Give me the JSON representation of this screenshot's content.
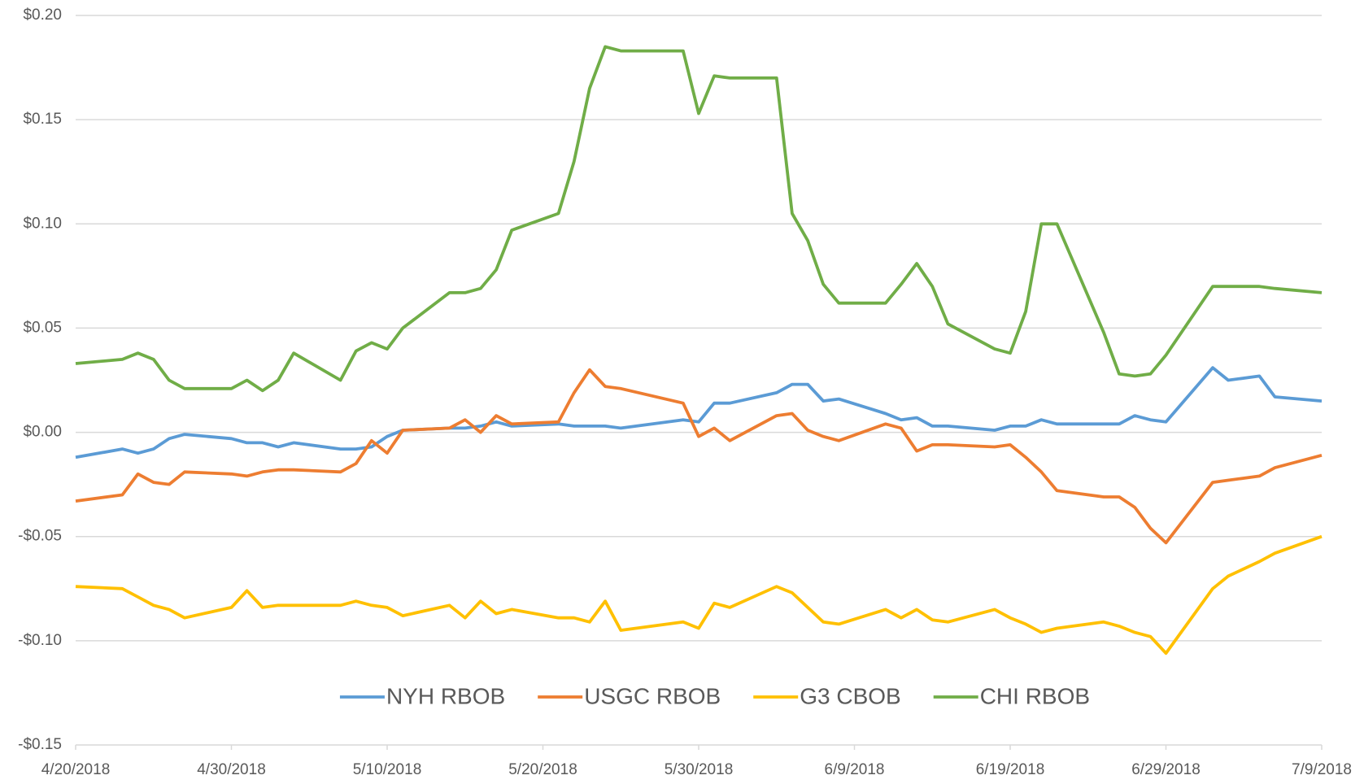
{
  "chart_data": {
    "type": "line",
    "x": [
      "4/20/2018",
      "4/23/2018",
      "4/24/2018",
      "4/25/2018",
      "4/26/2018",
      "4/27/2018",
      "4/30/2018",
      "5/1/2018",
      "5/2/2018",
      "5/3/2018",
      "5/4/2018",
      "5/7/2018",
      "5/8/2018",
      "5/9/2018",
      "5/10/2018",
      "5/11/2018",
      "5/14/2018",
      "5/15/2018",
      "5/16/2018",
      "5/17/2018",
      "5/18/2018",
      "5/21/2018",
      "5/22/2018",
      "5/23/2018",
      "5/24/2018",
      "5/25/2018",
      "5/29/2018",
      "5/30/2018",
      "5/31/2018",
      "6/1/2018",
      "6/4/2018",
      "6/5/2018",
      "6/6/2018",
      "6/7/2018",
      "6/8/2018",
      "6/11/2018",
      "6/12/2018",
      "6/13/2018",
      "6/14/2018",
      "6/15/2018",
      "6/18/2018",
      "6/19/2018",
      "6/20/2018",
      "6/21/2018",
      "6/22/2018",
      "6/25/2018",
      "6/26/2018",
      "6/27/2018",
      "6/28/2018",
      "6/29/2018",
      "7/2/2018",
      "7/3/2018",
      "7/5/2018",
      "7/6/2018",
      "7/9/2018"
    ],
    "series": [
      {
        "name": "NYH RBOB",
        "color": "#5b9bd5",
        "values": [
          -0.012,
          -0.008,
          -0.01,
          -0.008,
          -0.003,
          -0.001,
          -0.003,
          -0.005,
          -0.005,
          -0.007,
          -0.005,
          -0.008,
          -0.008,
          -0.007,
          -0.002,
          0.001,
          0.002,
          0.002,
          0.003,
          0.005,
          0.003,
          0.004,
          0.003,
          0.003,
          0.003,
          0.002,
          0.006,
          0.005,
          0.014,
          0.014,
          0.019,
          0.023,
          0.023,
          0.015,
          0.016,
          0.009,
          0.006,
          0.007,
          0.003,
          0.003,
          0.001,
          0.003,
          0.003,
          0.006,
          0.004,
          0.004,
          0.004,
          0.008,
          0.006,
          0.005,
          0.031,
          0.025,
          0.027,
          0.017,
          0.015
        ]
      },
      {
        "name": "USGC RBOB",
        "color": "#ed7d31",
        "values": [
          -0.033,
          -0.03,
          -0.02,
          -0.024,
          -0.025,
          -0.019,
          -0.02,
          -0.021,
          -0.019,
          -0.018,
          -0.018,
          -0.019,
          -0.015,
          -0.004,
          -0.01,
          0.001,
          0.002,
          0.006,
          0.0,
          0.008,
          0.004,
          0.005,
          0.019,
          0.03,
          0.022,
          0.021,
          0.014,
          -0.002,
          0.002,
          -0.004,
          0.008,
          0.009,
          0.001,
          -0.002,
          -0.004,
          0.004,
          0.002,
          -0.009,
          -0.006,
          -0.006,
          -0.007,
          -0.006,
          -0.012,
          -0.019,
          -0.028,
          -0.031,
          -0.031,
          -0.036,
          -0.046,
          -0.053,
          -0.024,
          -0.023,
          -0.021,
          -0.017,
          -0.011
        ]
      },
      {
        "name": "G3 CBOB",
        "color": "#ffc000",
        "values": [
          -0.074,
          -0.075,
          -0.079,
          -0.083,
          -0.085,
          -0.089,
          -0.084,
          -0.076,
          -0.084,
          -0.083,
          -0.083,
          -0.083,
          -0.081,
          -0.083,
          -0.084,
          -0.088,
          -0.083,
          -0.089,
          -0.081,
          -0.087,
          -0.085,
          -0.089,
          -0.089,
          -0.091,
          -0.081,
          -0.095,
          -0.091,
          -0.094,
          -0.082,
          -0.084,
          -0.074,
          -0.077,
          -0.084,
          -0.091,
          -0.092,
          -0.085,
          -0.089,
          -0.085,
          -0.09,
          -0.091,
          -0.085,
          -0.089,
          -0.092,
          -0.096,
          -0.094,
          -0.091,
          -0.093,
          -0.096,
          -0.098,
          -0.106,
          -0.075,
          -0.069,
          -0.062,
          -0.058,
          -0.05
        ]
      },
      {
        "name": "CHI RBOB",
        "color": "#70ad47",
        "values": [
          0.033,
          0.035,
          0.038,
          0.035,
          0.025,
          0.021,
          0.021,
          0.025,
          0.02,
          0.025,
          0.038,
          0.025,
          0.039,
          0.043,
          0.04,
          0.05,
          0.067,
          0.067,
          0.069,
          0.078,
          0.097,
          0.105,
          0.13,
          0.165,
          0.185,
          0.183,
          0.183,
          0.153,
          0.171,
          0.17,
          0.17,
          0.105,
          0.092,
          0.071,
          0.062,
          0.062,
          0.071,
          0.081,
          0.07,
          0.052,
          0.04,
          0.038,
          0.058,
          0.1,
          0.1,
          0.048,
          0.028,
          0.027,
          0.028,
          0.037,
          0.07,
          0.07,
          0.07,
          0.069,
          0.067
        ]
      }
    ],
    "xlim": [
      "4/20/2018",
      "7/9/2018"
    ],
    "xticks": [
      "4/20/2018",
      "4/30/2018",
      "5/10/2018",
      "5/20/2018",
      "5/30/2018",
      "6/9/2018",
      "6/19/2018",
      "6/29/2018",
      "7/9/2018"
    ],
    "ylim": [
      -0.15,
      0.2
    ],
    "yticks": [
      {
        "value": -0.15,
        "label": "-$0.15"
      },
      {
        "value": -0.1,
        "label": "-$0.10"
      },
      {
        "value": -0.05,
        "label": "-$0.05"
      },
      {
        "value": 0,
        "label": "$0.00"
      },
      {
        "value": 0.05,
        "label": "$0.05"
      },
      {
        "value": 0.1,
        "label": "$0.10"
      },
      {
        "value": 0.15,
        "label": "$0.15"
      },
      {
        "value": 0.2,
        "label": "$0.20"
      }
    ],
    "grid": true,
    "legend": "bottom"
  }
}
